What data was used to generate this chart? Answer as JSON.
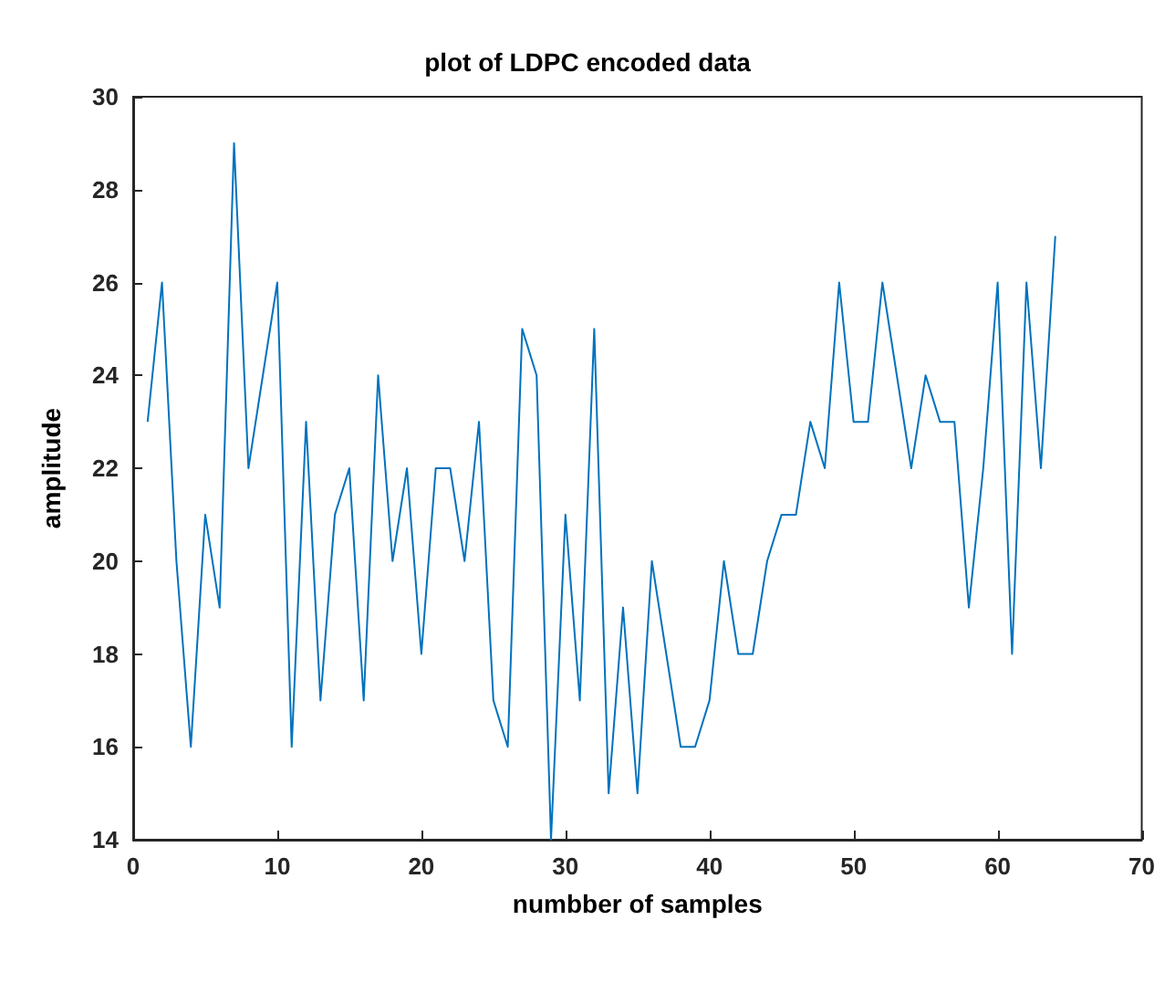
{
  "chart_data": {
    "type": "line",
    "title": "plot of LDPC encoded data",
    "xlabel": "numbber of samples",
    "ylabel": "amplitude",
    "x": [
      1,
      2,
      3,
      4,
      5,
      6,
      7,
      8,
      9,
      10,
      11,
      12,
      13,
      14,
      15,
      16,
      17,
      18,
      19,
      20,
      21,
      22,
      23,
      24,
      25,
      26,
      27,
      28,
      29,
      30,
      31,
      32,
      33,
      34,
      35,
      36,
      37,
      38,
      39,
      40,
      41,
      42,
      43,
      44,
      45,
      46,
      47,
      48,
      49,
      50,
      51,
      52,
      53,
      54,
      55,
      56,
      57,
      58,
      59,
      60,
      61,
      62,
      63,
      64
    ],
    "series": [
      {
        "color": "#0072bd",
        "values": [
          23,
          26,
          20,
          16,
          21,
          19,
          29,
          22,
          24,
          26,
          16,
          23,
          17,
          21,
          22,
          17,
          24,
          20,
          22,
          18,
          22,
          22,
          20,
          23,
          17,
          16,
          25,
          24,
          14,
          21,
          17,
          25,
          15,
          19,
          15,
          20,
          18,
          16,
          16,
          17,
          20,
          18,
          18,
          20,
          21,
          21,
          23,
          22,
          26,
          23,
          23,
          26,
          24,
          22,
          24,
          23,
          23,
          19,
          22,
          26,
          18,
          26,
          22,
          27
        ]
      }
    ],
    "xlim": [
      0,
      70
    ],
    "xticks": [
      0,
      10,
      20,
      30,
      40,
      50,
      60,
      70
    ],
    "ylim": [
      14,
      30
    ],
    "yticks": [
      14,
      16,
      18,
      20,
      22,
      24,
      26,
      28,
      30
    ],
    "grid": false,
    "marker": "none",
    "line_style": "solid"
  }
}
